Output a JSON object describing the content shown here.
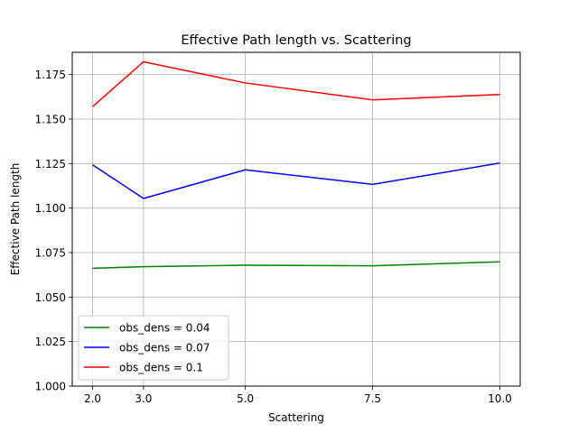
{
  "chart_data": {
    "type": "line",
    "title": "Effective Path length vs. Scattering",
    "xlabel": "Scattering",
    "ylabel": "Effective Path length",
    "x": [
      2.0,
      3.0,
      5.0,
      7.5,
      10.0
    ],
    "x_ticks": [
      2.0,
      3.0,
      5.0,
      7.5,
      10.0
    ],
    "x_tick_labels": [
      "2.0",
      "3.0",
      "5.0",
      "7.5",
      "10.0"
    ],
    "xlim": [
      1.6,
      10.4
    ],
    "ylim": [
      1.0,
      1.1875
    ],
    "y_ticks": [
      1.0,
      1.025,
      1.05,
      1.075,
      1.1,
      1.125,
      1.15,
      1.175
    ],
    "y_tick_labels": [
      "1.000",
      "1.025",
      "1.050",
      "1.075",
      "1.100",
      "1.125",
      "1.150",
      "1.175"
    ],
    "grid": true,
    "legend_position": "lower-left",
    "series": [
      {
        "name": "obs_dens = 0.04",
        "color": "#008000",
        "values": [
          1.0662,
          1.0671,
          1.0679,
          1.0676,
          1.0698
        ]
      },
      {
        "name": "obs_dens = 0.07",
        "color": "#0000ff",
        "values": [
          1.1243,
          1.1054,
          1.1215,
          1.1133,
          1.1253
        ]
      },
      {
        "name": "obs_dens = 0.1",
        "color": "#ff0000",
        "values": [
          1.157,
          1.1822,
          1.1703,
          1.1608,
          1.1638
        ]
      }
    ]
  }
}
